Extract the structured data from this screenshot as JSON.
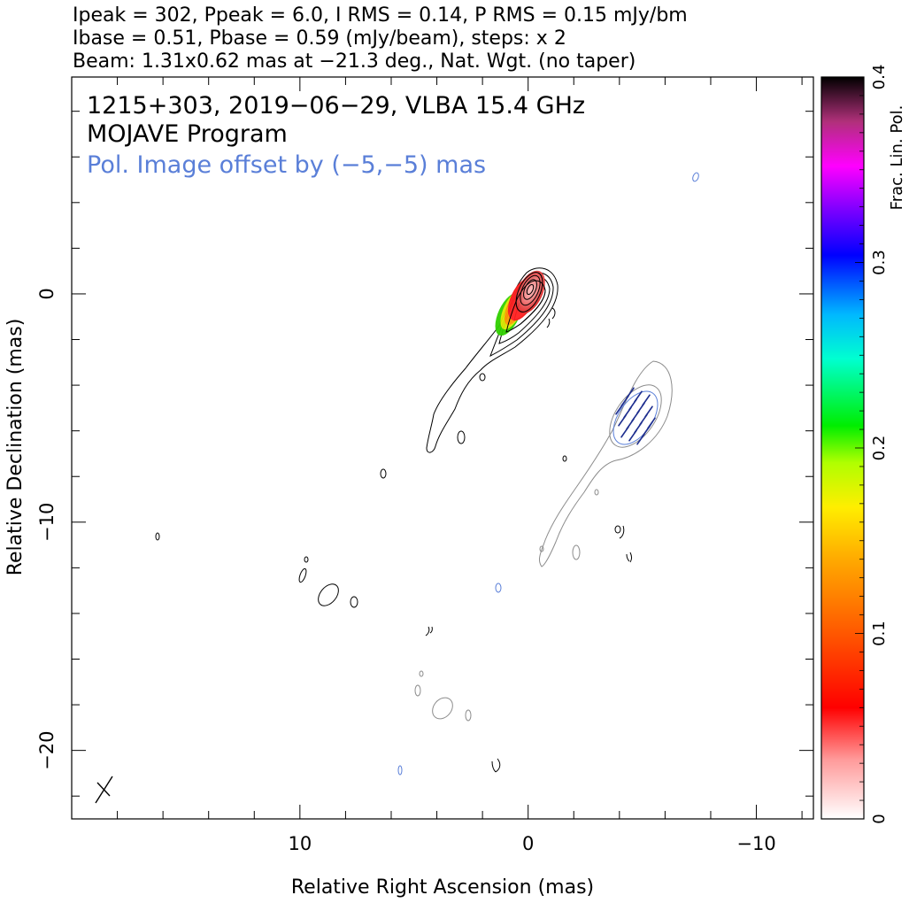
{
  "header": {
    "line1": "Ipeak = 302, Ppeak = 6.0, I RMS = 0.14, P RMS = 0.15 mJy/bm",
    "line2": "Ibase = 0.51, Pbase = 0.59 (mJy/beam), steps: x 2",
    "line3": "Beam: 1.31x0.62 mas at −21.3 deg., Nat. Wgt. (no taper)"
  },
  "panel": {
    "title1": "1215+303, 2019−06−29, VLBA 15.4 GHz",
    "title2": "MOJAVE Program",
    "title3": "Pol. Image offset by (−5,−5) mas",
    "title3_color": "#5a7fd8"
  },
  "colorbar": {
    "label": "Frac. Lin. Pol.",
    "range": [
      0,
      0.4
    ],
    "ticks": [
      "0",
      "0.1",
      "0.2",
      "0.3",
      "0.4"
    ]
  },
  "chart_data": {
    "type": "contour",
    "xlabel": "Relative Right Ascension (mas)",
    "ylabel": "Relative Declination (mas)",
    "xlim": [
      20,
      -12.5
    ],
    "ylim": [
      -23,
      9.5
    ],
    "x_ticks": [
      {
        "value": 10,
        "label": "10"
      },
      {
        "value": 0,
        "label": "0"
      },
      {
        "value": -10,
        "label": "−10"
      }
    ],
    "y_ticks": [
      {
        "value": 0,
        "label": "0"
      },
      {
        "value": -10,
        "label": "−10"
      },
      {
        "value": -20,
        "label": "−20"
      }
    ],
    "core_position": [
      0,
      0
    ],
    "pol_image_offset": [
      -5,
      -5
    ],
    "stokes_i_contour_color": "#000000",
    "pol_contour_color": "#8c8c8c",
    "evpa_color": "#1f2f8f"
  }
}
